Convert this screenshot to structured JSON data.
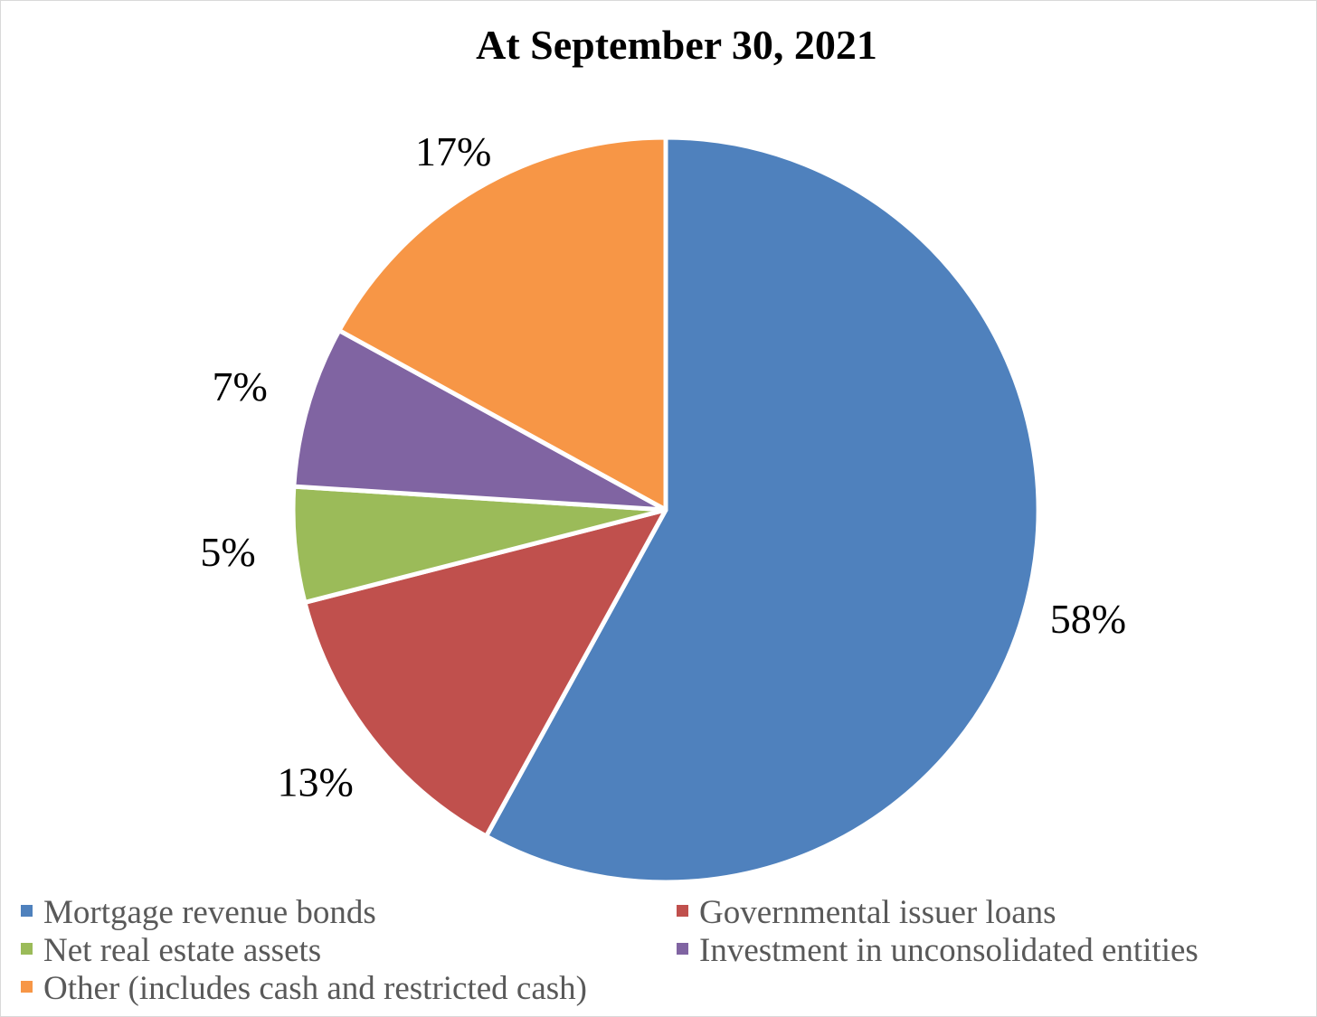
{
  "chart_data": {
    "type": "pie",
    "title": "At September 30, 2021",
    "categories": [
      "Mortgage revenue bonds",
      "Governmental issuer loans",
      "Net real estate assets",
      "Investment in unconsolidated entities",
      "Other (includes cash and restricted cash)"
    ],
    "values": [
      58,
      13,
      5,
      7,
      17
    ],
    "data_labels": [
      "58%",
      "13%",
      "5%",
      "7%",
      "17%"
    ],
    "colors": [
      "#4f81bd",
      "#c0504d",
      "#9bbb59",
      "#8064a2",
      "#f79646"
    ],
    "legend_position": "bottom",
    "start_angle": "12 o'clock",
    "direction": "clockwise"
  }
}
